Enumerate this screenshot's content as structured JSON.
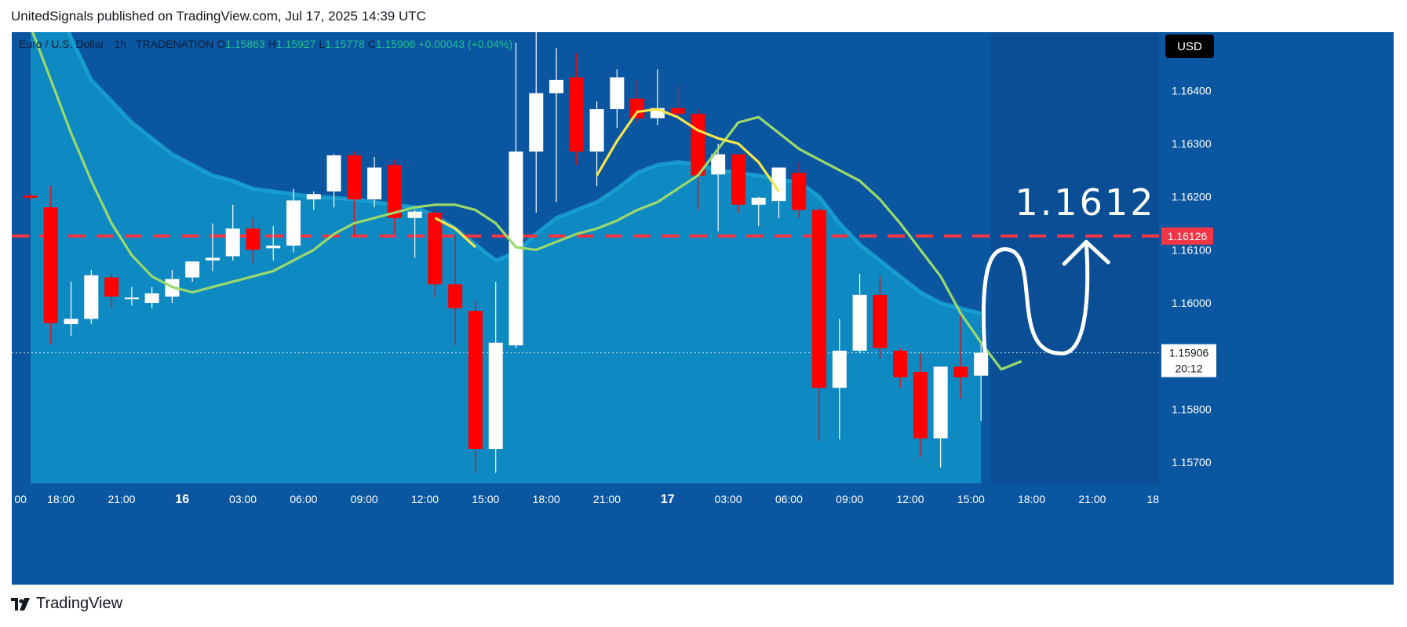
{
  "header": {
    "published_line": "UnitedSignals published on TradingView.com, Jul 17, 2025 14:39 UTC"
  },
  "legend": {
    "symbol": "Euro / U.S. Dollar · 1h · TRADENATION",
    "o_label": "O",
    "o_value": "1.15863",
    "h_label": "H",
    "h_value": "1.15927",
    "l_label": "L",
    "l_value": "1.15778",
    "c_label": "C",
    "c_value": "1.15906",
    "change": "+0.00043 (+0.04%)"
  },
  "price_axis": {
    "currency": "USD",
    "ticks": [
      "1.16400",
      "1.16300",
      "1.16200",
      "1.16100",
      "1.16000",
      "1.15800",
      "1.15700"
    ],
    "level_tag": "1.16126",
    "last_price_tag": "1.15906",
    "countdown": "20:12"
  },
  "annotation": {
    "target_text": "1.1612"
  },
  "footer": {
    "brand": "TradingView"
  },
  "colors": {
    "plot_bg": "#0a56a0",
    "future_bg": "#0a4f96",
    "envelope_fill": "#0e8fc4",
    "envelope_edge": "#1aa6d6",
    "bull": "#ffffff",
    "bear": "#ff0000",
    "ma_green": "#9ad96b",
    "ma_yellow": "#f5e64a",
    "level_line": "#f23645",
    "axis_text": "#ffffff",
    "time_axis_bg": "#0a56a0"
  },
  "chart_data": {
    "type": "candlestick",
    "interval": "1h",
    "ylim": [
      1.1566,
      1.1651
    ],
    "x_ticks": [
      {
        "i": -0.5,
        "label": "00"
      },
      {
        "i": 1.5,
        "label": "18:00"
      },
      {
        "i": 4.5,
        "label": "21:00"
      },
      {
        "i": 7.5,
        "label": "16"
      },
      {
        "i": 10.5,
        "label": "03:00"
      },
      {
        "i": 13.5,
        "label": "06:00"
      },
      {
        "i": 16.5,
        "label": "09:00"
      },
      {
        "i": 19.5,
        "label": "12:00"
      },
      {
        "i": 22.5,
        "label": "15:00"
      },
      {
        "i": 25.5,
        "label": "18:00"
      },
      {
        "i": 28.5,
        "label": "21:00"
      },
      {
        "i": 31.5,
        "label": "17"
      },
      {
        "i": 34.5,
        "label": "03:00"
      },
      {
        "i": 37.5,
        "label": "06:00"
      },
      {
        "i": 40.5,
        "label": "09:00"
      },
      {
        "i": 43.5,
        "label": "12:00"
      },
      {
        "i": 46.5,
        "label": "15:00"
      },
      {
        "i": 49.5,
        "label": "18:00"
      },
      {
        "i": 52.5,
        "label": "21:00"
      },
      {
        "i": 55.5,
        "label": "18"
      }
    ],
    "bold_tick_labels": [
      "16",
      "17"
    ],
    "candles": [
      {
        "o": 1.16202,
        "h": 1.16205,
        "l": 1.16195,
        "c": 1.16198
      },
      {
        "o": 1.1618,
        "h": 1.1622,
        "l": 1.15922,
        "c": 1.15962
      },
      {
        "o": 1.1596,
        "h": 1.1604,
        "l": 1.15938,
        "c": 1.1597
      },
      {
        "o": 1.1597,
        "h": 1.16062,
        "l": 1.1596,
        "c": 1.16052
      },
      {
        "o": 1.16048,
        "h": 1.16055,
        "l": 1.1599,
        "c": 1.16012
      },
      {
        "o": 1.16008,
        "h": 1.1603,
        "l": 1.15995,
        "c": 1.1601
      },
      {
        "o": 1.16,
        "h": 1.1603,
        "l": 1.1599,
        "c": 1.16018
      },
      {
        "o": 1.16012,
        "h": 1.16062,
        "l": 1.16,
        "c": 1.16045
      },
      {
        "o": 1.16048,
        "h": 1.16075,
        "l": 1.1604,
        "c": 1.16078
      },
      {
        "o": 1.1608,
        "h": 1.1615,
        "l": 1.1606,
        "c": 1.16085
      },
      {
        "o": 1.16088,
        "h": 1.16185,
        "l": 1.1608,
        "c": 1.1614
      },
      {
        "o": 1.1614,
        "h": 1.1616,
        "l": 1.16075,
        "c": 1.161
      },
      {
        "o": 1.16103,
        "h": 1.16145,
        "l": 1.1608,
        "c": 1.16108
      },
      {
        "o": 1.16108,
        "h": 1.16215,
        "l": 1.16095,
        "c": 1.16193
      },
      {
        "o": 1.16195,
        "h": 1.1621,
        "l": 1.16175,
        "c": 1.16205
      },
      {
        "o": 1.1621,
        "h": 1.1628,
        "l": 1.1618,
        "c": 1.16278
      },
      {
        "o": 1.16278,
        "h": 1.16285,
        "l": 1.16125,
        "c": 1.16195
      },
      {
        "o": 1.16195,
        "h": 1.16275,
        "l": 1.1618,
        "c": 1.16255
      },
      {
        "o": 1.1626,
        "h": 1.1627,
        "l": 1.1613,
        "c": 1.1616
      },
      {
        "o": 1.1616,
        "h": 1.16175,
        "l": 1.16085,
        "c": 1.16172
      },
      {
        "o": 1.1617,
        "h": 1.16175,
        "l": 1.1601,
        "c": 1.16035
      },
      {
        "o": 1.16035,
        "h": 1.1613,
        "l": 1.1592,
        "c": 1.1599
      },
      {
        "o": 1.15985,
        "h": 1.16005,
        "l": 1.1568,
        "c": 1.15725
      },
      {
        "o": 1.15725,
        "h": 1.1604,
        "l": 1.1568,
        "c": 1.15925
      },
      {
        "o": 1.1592,
        "h": 1.1649,
        "l": 1.15915,
        "c": 1.16285
      },
      {
        "o": 1.16285,
        "h": 1.1656,
        "l": 1.1617,
        "c": 1.16395
      },
      {
        "o": 1.16395,
        "h": 1.1648,
        "l": 1.1619,
        "c": 1.1642
      },
      {
        "o": 1.16425,
        "h": 1.1647,
        "l": 1.1626,
        "c": 1.16285
      },
      {
        "o": 1.16285,
        "h": 1.1638,
        "l": 1.1622,
        "c": 1.16365
      },
      {
        "o": 1.16365,
        "h": 1.1644,
        "l": 1.1633,
        "c": 1.16425
      },
      {
        "o": 1.16385,
        "h": 1.1642,
        "l": 1.1634,
        "c": 1.16348
      },
      {
        "o": 1.16348,
        "h": 1.1644,
        "l": 1.16335,
        "c": 1.16367
      },
      {
        "o": 1.16367,
        "h": 1.1641,
        "l": 1.16345,
        "c": 1.16356
      },
      {
        "o": 1.16356,
        "h": 1.16365,
        "l": 1.16175,
        "c": 1.1624
      },
      {
        "o": 1.16242,
        "h": 1.163,
        "l": 1.16135,
        "c": 1.1628
      },
      {
        "o": 1.1628,
        "h": 1.1628,
        "l": 1.1617,
        "c": 1.16185
      },
      {
        "o": 1.16185,
        "h": 1.162,
        "l": 1.16145,
        "c": 1.16198
      },
      {
        "o": 1.16192,
        "h": 1.16255,
        "l": 1.1616,
        "c": 1.16255
      },
      {
        "o": 1.16245,
        "h": 1.16265,
        "l": 1.1616,
        "c": 1.16175
      },
      {
        "o": 1.16175,
        "h": 1.1618,
        "l": 1.1574,
        "c": 1.1584
      },
      {
        "o": 1.1584,
        "h": 1.1597,
        "l": 1.15743,
        "c": 1.1591
      },
      {
        "o": 1.1591,
        "h": 1.16055,
        "l": 1.15905,
        "c": 1.16015
      },
      {
        "o": 1.16015,
        "h": 1.1605,
        "l": 1.15895,
        "c": 1.15915
      },
      {
        "o": 1.1591,
        "h": 1.15915,
        "l": 1.1584,
        "c": 1.1586
      },
      {
        "o": 1.1587,
        "h": 1.15905,
        "l": 1.1571,
        "c": 1.15745
      },
      {
        "o": 1.15745,
        "h": 1.1588,
        "l": 1.1569,
        "c": 1.1588
      },
      {
        "o": 1.1588,
        "h": 1.15985,
        "l": 1.1582,
        "c": 1.1586
      },
      {
        "o": 1.15863,
        "h": 1.15927,
        "l": 1.15778,
        "c": 1.15906
      }
    ],
    "ma_green": [
      1.1652,
      1.1642,
      1.1632,
      1.1623,
      1.1615,
      1.1609,
      1.1605,
      1.1603,
      1.1602,
      1.1603,
      1.1604,
      1.1605,
      1.1606,
      1.1608,
      1.161,
      1.1613,
      1.1615,
      1.1616,
      1.1617,
      1.1618,
      1.16185,
      1.16185,
      1.16175,
      1.1615,
      1.16105,
      1.161,
      1.16115,
      1.1613,
      1.1614,
      1.16155,
      1.16175,
      1.1619,
      1.16215,
      1.1624,
      1.1629,
      1.1634,
      1.1635,
      1.1632,
      1.1629,
      1.1627,
      1.1625,
      1.1623,
      1.16195,
      1.1615,
      1.161,
      1.1605,
      1.1598,
      1.15925,
      1.15875,
      1.1589
    ],
    "ma_yellow_segments": [
      {
        "start": 20,
        "values": [
          1.1616,
          1.1614,
          1.16105
        ]
      },
      {
        "start": 28,
        "values": [
          1.1624,
          1.16305,
          1.1636,
          1.16365,
          1.1635,
          1.16325,
          1.1631,
          1.163,
          1.16265,
          1.1621
        ]
      }
    ],
    "envelope_upper": [
      1.167,
      1.166,
      1.165,
      1.1642,
      1.1638,
      1.1634,
      1.1631,
      1.1628,
      1.1626,
      1.1624,
      1.1623,
      1.16215,
      1.1621,
      1.16205,
      1.162,
      1.16198,
      1.16195,
      1.1619,
      1.16185,
      1.1618,
      1.16165,
      1.1614,
      1.1611,
      1.1608,
      1.16095,
      1.1613,
      1.1616,
      1.16175,
      1.1619,
      1.16215,
      1.16245,
      1.1626,
      1.16265,
      1.16262,
      1.1625,
      1.16245,
      1.1624,
      1.16232,
      1.16228,
      1.162,
      1.1615,
      1.1611,
      1.1608,
      1.1605,
      1.1602,
      1.16,
      1.1599,
      1.1598
    ],
    "level": 1.16126,
    "last_price": 1.15906,
    "scribble": {
      "start": [
        47.2,
        1.159
      ],
      "peak": [
        48.4,
        1.161
      ],
      "trough": [
        51.1,
        1.15905
      ],
      "end": [
        52.2,
        1.16115
      ]
    }
  }
}
